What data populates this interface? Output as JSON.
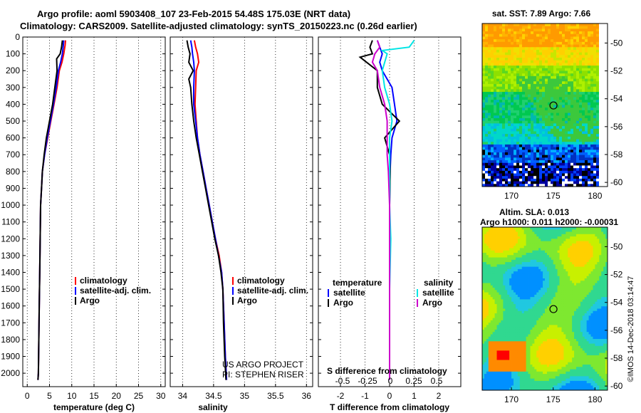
{
  "header": {
    "title_line1": "Argo profile: aoml 5903408_107 23-Feb-2015 54.48S 175.03E (NRT data)",
    "title_line2": "Climatology: CARS2009. Satellite-adjusted climatology: synTS_20150223.nc (0.26d earlier)"
  },
  "credits": {
    "project": "US ARGO PROJECT",
    "pi": "PI: STEPHEN RISER",
    "imos_stamp": "©IMOS 14-Dec-2018 03:14:47"
  },
  "colors": {
    "climatology": "#ff0000",
    "satellite": "#0000ff",
    "argo": "#000000",
    "salinity_satellite": "#00e5e5",
    "salinity_argo": "#cc00cc"
  },
  "chart_data": [
    {
      "type": "line",
      "id": "temperature",
      "xlabel": "temperature (deg C)",
      "ylabel": "",
      "xlim": [
        -1,
        31
      ],
      "ylim": [
        2080,
        0
      ],
      "xticks": [
        0,
        5,
        10,
        15,
        20,
        25,
        30
      ],
      "yticks": [
        0,
        100,
        200,
        300,
        400,
        500,
        600,
        700,
        800,
        900,
        1000,
        1100,
        1200,
        1300,
        1400,
        1500,
        1600,
        1700,
        1800,
        1900,
        2000
      ],
      "legend": [
        "climatology",
        "satellite-adj. clim.",
        "Argo"
      ],
      "legend_position": "lower-right",
      "series": [
        {
          "name": "climatology",
          "color": "#ff0000",
          "points": [
            [
              8.6,
              20
            ],
            [
              8.5,
              50
            ],
            [
              8.2,
              100
            ],
            [
              7.8,
              150
            ],
            [
              7.2,
              200
            ],
            [
              6.7,
              300
            ],
            [
              6.0,
              400
            ],
            [
              5.3,
              500
            ],
            [
              4.6,
              600
            ],
            [
              3.9,
              700
            ],
            [
              3.4,
              800
            ],
            [
              3.2,
              900
            ],
            [
              3.0,
              1000
            ],
            [
              2.9,
              1200
            ],
            [
              2.8,
              1400
            ],
            [
              2.7,
              1600
            ],
            [
              2.6,
              1800
            ],
            [
              2.5,
              2000
            ],
            [
              2.4,
              2040
            ]
          ]
        },
        {
          "name": "satellite-adj. clim.",
          "color": "#0000ff",
          "points": [
            [
              8.2,
              20
            ],
            [
              8.1,
              50
            ],
            [
              7.9,
              100
            ],
            [
              7.5,
              150
            ],
            [
              7.0,
              200
            ],
            [
              6.5,
              300
            ],
            [
              5.9,
              400
            ],
            [
              5.2,
              500
            ],
            [
              4.5,
              600
            ],
            [
              3.9,
              700
            ],
            [
              3.4,
              800
            ],
            [
              3.2,
              900
            ],
            [
              3.0,
              1000
            ],
            [
              2.9,
              1200
            ],
            [
              2.8,
              1400
            ],
            [
              2.7,
              1600
            ],
            [
              2.6,
              1800
            ],
            [
              2.5,
              2000
            ],
            [
              2.4,
              2040
            ]
          ]
        },
        {
          "name": "Argo",
          "color": "#000000",
          "points": [
            [
              7.9,
              20
            ],
            [
              7.7,
              60
            ],
            [
              7.4,
              100
            ],
            [
              6.6,
              130
            ],
            [
              6.7,
              200
            ],
            [
              6.2,
              300
            ],
            [
              5.7,
              400
            ],
            [
              5.0,
              500
            ],
            [
              4.3,
              600
            ],
            [
              3.8,
              700
            ],
            [
              3.4,
              800
            ],
            [
              3.2,
              900
            ],
            [
              3.0,
              1000
            ],
            [
              2.9,
              1200
            ],
            [
              2.8,
              1400
            ],
            [
              2.7,
              1600
            ],
            [
              2.6,
              1800
            ],
            [
              2.5,
              2000
            ],
            [
              2.4,
              2040
            ]
          ]
        }
      ]
    },
    {
      "type": "line",
      "id": "salinity",
      "xlabel": "salinity",
      "ylabel": "",
      "xlim": [
        33.8,
        36.1
      ],
      "ylim": [
        2080,
        0
      ],
      "xticks": [
        34,
        34.5,
        35,
        35.5,
        36
      ],
      "legend": [
        "climatology",
        "satellite-adj. clim.",
        "Argo"
      ],
      "legend_position": "lower-right",
      "series": [
        {
          "name": "climatology",
          "color": "#ff0000",
          "points": [
            [
              34.19,
              20
            ],
            [
              34.21,
              60
            ],
            [
              34.24,
              100
            ],
            [
              34.26,
              150
            ],
            [
              34.22,
              200
            ],
            [
              34.21,
              300
            ],
            [
              34.2,
              400
            ],
            [
              34.22,
              500
            ],
            [
              34.24,
              600
            ],
            [
              34.28,
              700
            ],
            [
              34.33,
              800
            ],
            [
              34.38,
              900
            ],
            [
              34.43,
              1000
            ],
            [
              34.48,
              1100
            ],
            [
              34.53,
              1200
            ],
            [
              34.59,
              1300
            ],
            [
              34.63,
              1400
            ],
            [
              34.65,
              1500
            ],
            [
              34.67,
              1700
            ],
            [
              34.69,
              1900
            ],
            [
              34.71,
              2040
            ]
          ]
        },
        {
          "name": "satellite-adj. clim.",
          "color": "#0000ff",
          "points": [
            [
              34.13,
              20
            ],
            [
              34.15,
              60
            ],
            [
              34.16,
              100
            ],
            [
              34.18,
              150
            ],
            [
              34.19,
              200
            ],
            [
              34.18,
              300
            ],
            [
              34.18,
              400
            ],
            [
              34.21,
              500
            ],
            [
              34.24,
              600
            ],
            [
              34.28,
              700
            ],
            [
              34.33,
              800
            ],
            [
              34.38,
              900
            ],
            [
              34.43,
              1000
            ],
            [
              34.48,
              1100
            ],
            [
              34.53,
              1200
            ],
            [
              34.58,
              1300
            ],
            [
              34.63,
              1400
            ],
            [
              34.65,
              1500
            ],
            [
              34.67,
              1700
            ],
            [
              34.69,
              1900
            ],
            [
              34.71,
              2040
            ]
          ]
        },
        {
          "name": "Argo",
          "color": "#000000",
          "points": [
            [
              34.07,
              20
            ],
            [
              34.09,
              60
            ],
            [
              34.12,
              100
            ],
            [
              34.1,
              150
            ],
            [
              34.17,
              200
            ],
            [
              34.1,
              250
            ],
            [
              34.13,
              300
            ],
            [
              34.15,
              400
            ],
            [
              34.18,
              500
            ],
            [
              34.22,
              600
            ],
            [
              34.27,
              700
            ],
            [
              34.32,
              800
            ],
            [
              34.37,
              900
            ],
            [
              34.42,
              1000
            ],
            [
              34.47,
              1100
            ],
            [
              34.52,
              1200
            ],
            [
              34.58,
              1300
            ],
            [
              34.62,
              1400
            ],
            [
              34.65,
              1500
            ],
            [
              34.66,
              1700
            ],
            [
              34.68,
              1900
            ],
            [
              34.7,
              2040
            ]
          ]
        }
      ]
    },
    {
      "type": "line",
      "id": "difference",
      "xlabel": "T difference from climatology",
      "xlabel_top": "S difference from climatology",
      "xlim": [
        -2.9,
        2.9
      ],
      "ylim": [
        2080,
        0
      ],
      "xticks": [
        -2,
        -1,
        0,
        1,
        2
      ],
      "xticks_s": [
        "-0.5",
        "-0.25",
        "0",
        "0.25",
        "0.5"
      ],
      "legend_temperature_header": "temperature",
      "legend_salinity_header": "salinity",
      "legend_temperature": [
        "satellite",
        "Argo"
      ],
      "legend_salinity": [
        "satellite",
        "Argo"
      ],
      "legend_position": "lower",
      "series": [
        {
          "name": "T satellite",
          "color": "#0000ff",
          "points": [
            [
              -0.5,
              20
            ],
            [
              -0.4,
              60
            ],
            [
              -0.3,
              100
            ],
            [
              -0.4,
              150
            ],
            [
              -0.3,
              200
            ],
            [
              0.1,
              300
            ],
            [
              0.2,
              400
            ],
            [
              0.3,
              500
            ],
            [
              0.1,
              600
            ],
            [
              0.05,
              700
            ],
            [
              0.02,
              800
            ],
            [
              0.0,
              1000
            ],
            [
              0.0,
              1500
            ],
            [
              0.0,
              2040
            ]
          ]
        },
        {
          "name": "T Argo",
          "color": "#000000",
          "points": [
            [
              -0.7,
              20
            ],
            [
              -0.8,
              60
            ],
            [
              -0.7,
              100
            ],
            [
              -1.2,
              120
            ],
            [
              -0.5,
              200
            ],
            [
              -0.5,
              300
            ],
            [
              -0.3,
              400
            ],
            [
              0.4,
              500
            ],
            [
              -0.2,
              600
            ],
            [
              0.0,
              700
            ],
            [
              0.02,
              800
            ],
            [
              0.0,
              1000
            ],
            [
              0.0,
              1500
            ],
            [
              0.0,
              2040
            ]
          ]
        },
        {
          "name": "S satellite",
          "color": "#00e5e5",
          "points": [
            [
              1.0,
              20
            ],
            [
              0.8,
              60
            ],
            [
              -0.3,
              80
            ],
            [
              -0.1,
              100
            ],
            [
              -0.3,
              200
            ],
            [
              -0.2,
              300
            ],
            [
              0.0,
              400
            ],
            [
              0.1,
              500
            ],
            [
              0.0,
              600
            ],
            [
              0.0,
              700
            ],
            [
              0.0,
              1000
            ],
            [
              0.05,
              1200
            ],
            [
              0.0,
              1500
            ],
            [
              0.0,
              2040
            ]
          ]
        },
        {
          "name": "S Argo",
          "color": "#cc00cc",
          "points": [
            [
              -0.5,
              20
            ],
            [
              -0.4,
              60
            ],
            [
              -0.6,
              100
            ],
            [
              -0.7,
              150
            ],
            [
              -0.5,
              200
            ],
            [
              -0.4,
              300
            ],
            [
              -0.2,
              400
            ],
            [
              -0.1,
              500
            ],
            [
              -0.1,
              600
            ],
            [
              -0.1,
              700
            ],
            [
              -0.05,
              800
            ],
            [
              0.0,
              1000
            ],
            [
              0.0,
              1500
            ],
            [
              0.0,
              2040
            ]
          ]
        }
      ]
    },
    {
      "type": "heatmap",
      "id": "sst_map",
      "title": "sat. SST: 7.89 Argo: 7.66",
      "xlim": [
        166.5,
        181.5
      ],
      "ylim": [
        -60.3,
        -48.6
      ],
      "xticks": [
        170,
        175,
        180
      ],
      "yticks": [
        -50,
        -52,
        -54,
        -56,
        -58,
        -60
      ],
      "marker": {
        "lon": 175.03,
        "lat": -54.48
      }
    },
    {
      "type": "heatmap",
      "id": "sla_map",
      "title_line1": "Altim. SLA: 0.013",
      "title_line2": "Argo h1000: 0.011 h2000: -0.00031",
      "xlim": [
        166.5,
        181.5
      ],
      "ylim": [
        -60.3,
        -48.6
      ],
      "xticks": [
        170,
        175,
        180
      ],
      "yticks": [
        -50,
        -52,
        -54,
        -56,
        -58,
        -60
      ],
      "marker": {
        "lon": 175.03,
        "lat": -54.48
      }
    }
  ]
}
